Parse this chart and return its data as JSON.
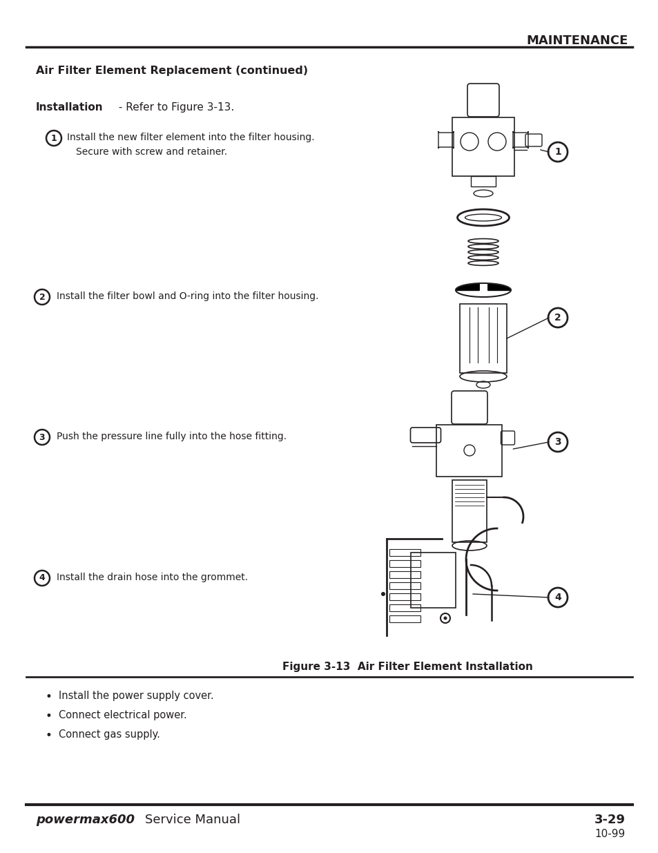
{
  "page_bg": "#ffffff",
  "text_color": "#231f20",
  "header_text": "MAINTENANCE",
  "title": "Air Filter Element Replacement (continued)",
  "section_bold": "Installation",
  "section_normal": " - Refer to Figure 3-13.",
  "step1_lines": [
    "Install the new filter element into the filter housing.",
    "Secure with screw and retainer."
  ],
  "step2_lines": [
    "Install the filter bowl and O-ring into the filter housing."
  ],
  "step3_lines": [
    "Push the pressure line fully into the hose fitting."
  ],
  "step4_lines": [
    "Install the drain hose into the grommet."
  ],
  "figure_caption": "Figure 3-13  Air Filter Element Installation",
  "bullet_items": [
    "Install the power supply cover.",
    "Connect electrical power.",
    "Connect gas supply."
  ],
  "footer_logo": "powermax600",
  "footer_text": "Service Manual",
  "footer_page": "3-29",
  "footer_date": "10-99"
}
